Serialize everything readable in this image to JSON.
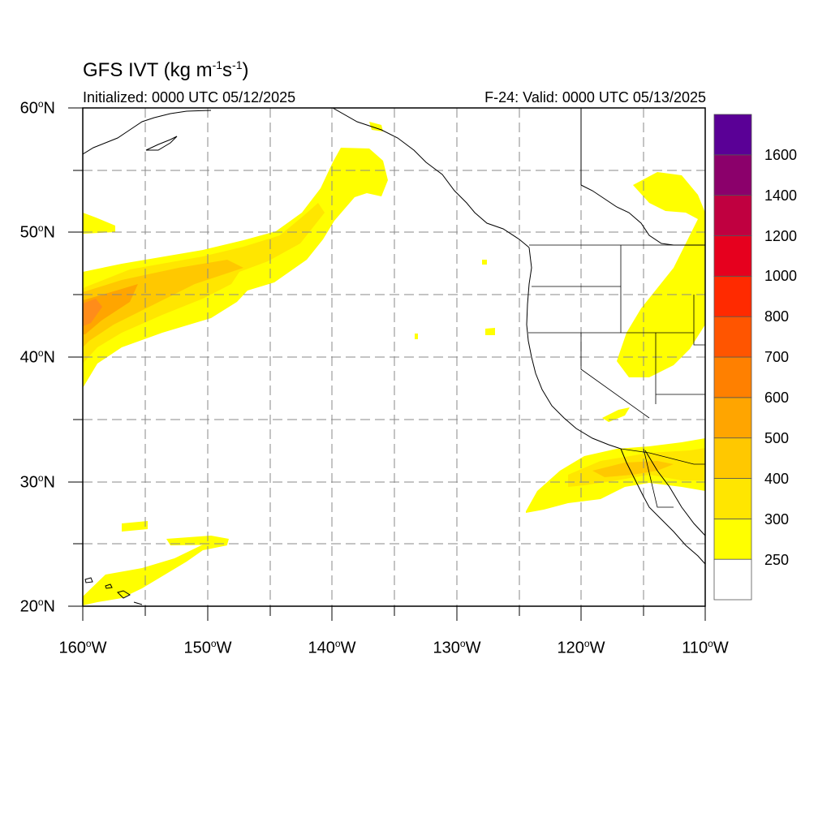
{
  "title": {
    "text": "GFS IVT (kg m",
    "sup1": "-1",
    "mid": "s",
    "sup2": "-1",
    "end": ")"
  },
  "initialized": "Initialized: 0000 UTC 05/12/2025",
  "valid": "F-24: Valid: 0000 UTC 05/13/2025",
  "lat_labels": [
    "60",
    "50",
    "40",
    "30",
    "20"
  ],
  "lat_suffix": "N",
  "lon_labels": [
    "160",
    "150",
    "140",
    "130",
    "120",
    "110"
  ],
  "lon_suffix": "W",
  "colorbar": {
    "labels": [
      "1600",
      "1400",
      "1200",
      "1000",
      "800",
      "700",
      "600",
      "500",
      "400",
      "300",
      "250"
    ],
    "colors": [
      "#ffffff",
      "#ffff00",
      "#ffe600",
      "#ffc800",
      "#ffa500",
      "#ff8000",
      "#ff5500",
      "#ff2a00",
      "#e6001e",
      "#c00040",
      "#8b006b",
      "#5a0096"
    ]
  },
  "colors": {
    "ivt_250": "#ffff00",
    "ivt_300": "#ffe600",
    "ivt_400": "#ffc800",
    "ivt_500": "#ffa500",
    "ivt_600": "#ff8c1a"
  },
  "chart_data": {
    "type": "heatmap",
    "title": "GFS IVT (kg m-1s-1)",
    "subtitle_left": "Initialized: 0000 UTC 05/12/2025",
    "subtitle_right": "F-24: Valid: 0000 UTC 05/13/2025",
    "x_range_lon": [
      -160,
      -110
    ],
    "y_range_lat": [
      20,
      60
    ],
    "grid": true,
    "legend": "right",
    "levels": [
      250,
      300,
      400,
      500,
      600,
      700,
      800,
      1000,
      1200,
      1400,
      1600
    ]
  }
}
